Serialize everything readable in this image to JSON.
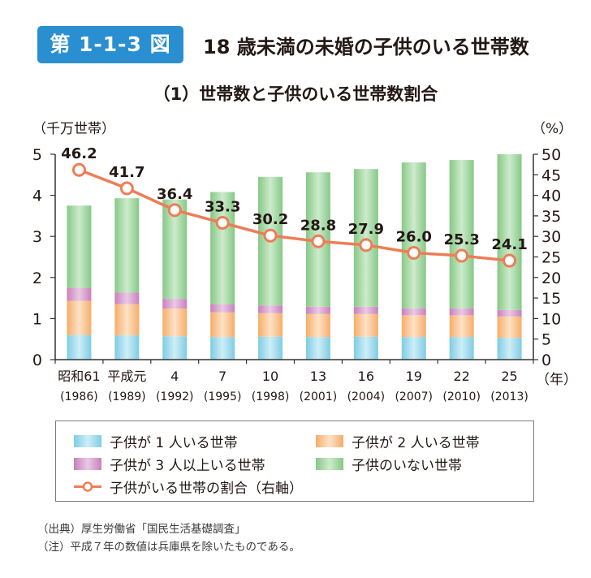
{
  "figure": {
    "badge": "第 1-1-3 図",
    "title": "18 歳未満の未婚の子供のいる世帯数",
    "subtitle": "（1）世帯数と子供のいる世帯数割合"
  },
  "colors": {
    "one_child": "#a8dcec",
    "two_children": "#f9c797",
    "three_plus": "#d9a3cf",
    "no_children": "#a8d9a7",
    "ratio_line": "#ee7d57",
    "badge": "#2a8fd0"
  },
  "chart_data": {
    "type": "bar",
    "stacked": true,
    "categories": [
      "昭和61",
      "平成元",
      "4",
      "7",
      "10",
      "13",
      "16",
      "19",
      "22",
      "25"
    ],
    "categories_sub": [
      "(1986)",
      "(1989)",
      "(1992)",
      "(1995)",
      "(1998)",
      "(2001)",
      "(2004)",
      "(2007)",
      "(2010)",
      "(2013)"
    ],
    "y_label_left": "（千万世帯）",
    "y_label_right": "（%）",
    "x_unit": "（年）",
    "ylim_left": [
      0,
      5
    ],
    "yticks_left": [
      0,
      1,
      2,
      3,
      4,
      5
    ],
    "ylim_right": [
      0,
      50
    ],
    "yticks_right": [
      0,
      5,
      10,
      15,
      20,
      25,
      30,
      35,
      40,
      45,
      50
    ],
    "series": [
      {
        "name": "子供が 1 人いる世帯",
        "values": [
          0.6,
          0.59,
          0.57,
          0.55,
          0.56,
          0.55,
          0.56,
          0.55,
          0.55,
          0.53
        ]
      },
      {
        "name": "子供が 2 人いる世帯",
        "values": [
          0.83,
          0.76,
          0.67,
          0.6,
          0.57,
          0.56,
          0.55,
          0.53,
          0.53,
          0.52
        ]
      },
      {
        "name": "子供が 3 人以上いる世帯",
        "values": [
          0.31,
          0.28,
          0.24,
          0.2,
          0.19,
          0.18,
          0.18,
          0.17,
          0.17,
          0.16
        ]
      },
      {
        "name": "子供のいない世帯",
        "values": [
          2.01,
          2.3,
          2.42,
          2.73,
          3.13,
          3.27,
          3.35,
          3.55,
          3.61,
          3.79
        ]
      }
    ],
    "line": {
      "name": "子供がいる世帯の割合（右軸）",
      "values": [
        46.2,
        41.7,
        36.4,
        33.3,
        30.2,
        28.8,
        27.9,
        26.0,
        25.3,
        24.1
      ],
      "labels": [
        "46.2",
        "41.7",
        "36.4",
        "33.3",
        "30.2",
        "28.8",
        "27.9",
        "26.0",
        "25.3",
        "24.1"
      ]
    }
  },
  "notes": {
    "source": "（出典）厚生労働省「国民生活基礎調査」",
    "note": "（注）平成７年の数値は兵庫県を除いたものである。"
  }
}
